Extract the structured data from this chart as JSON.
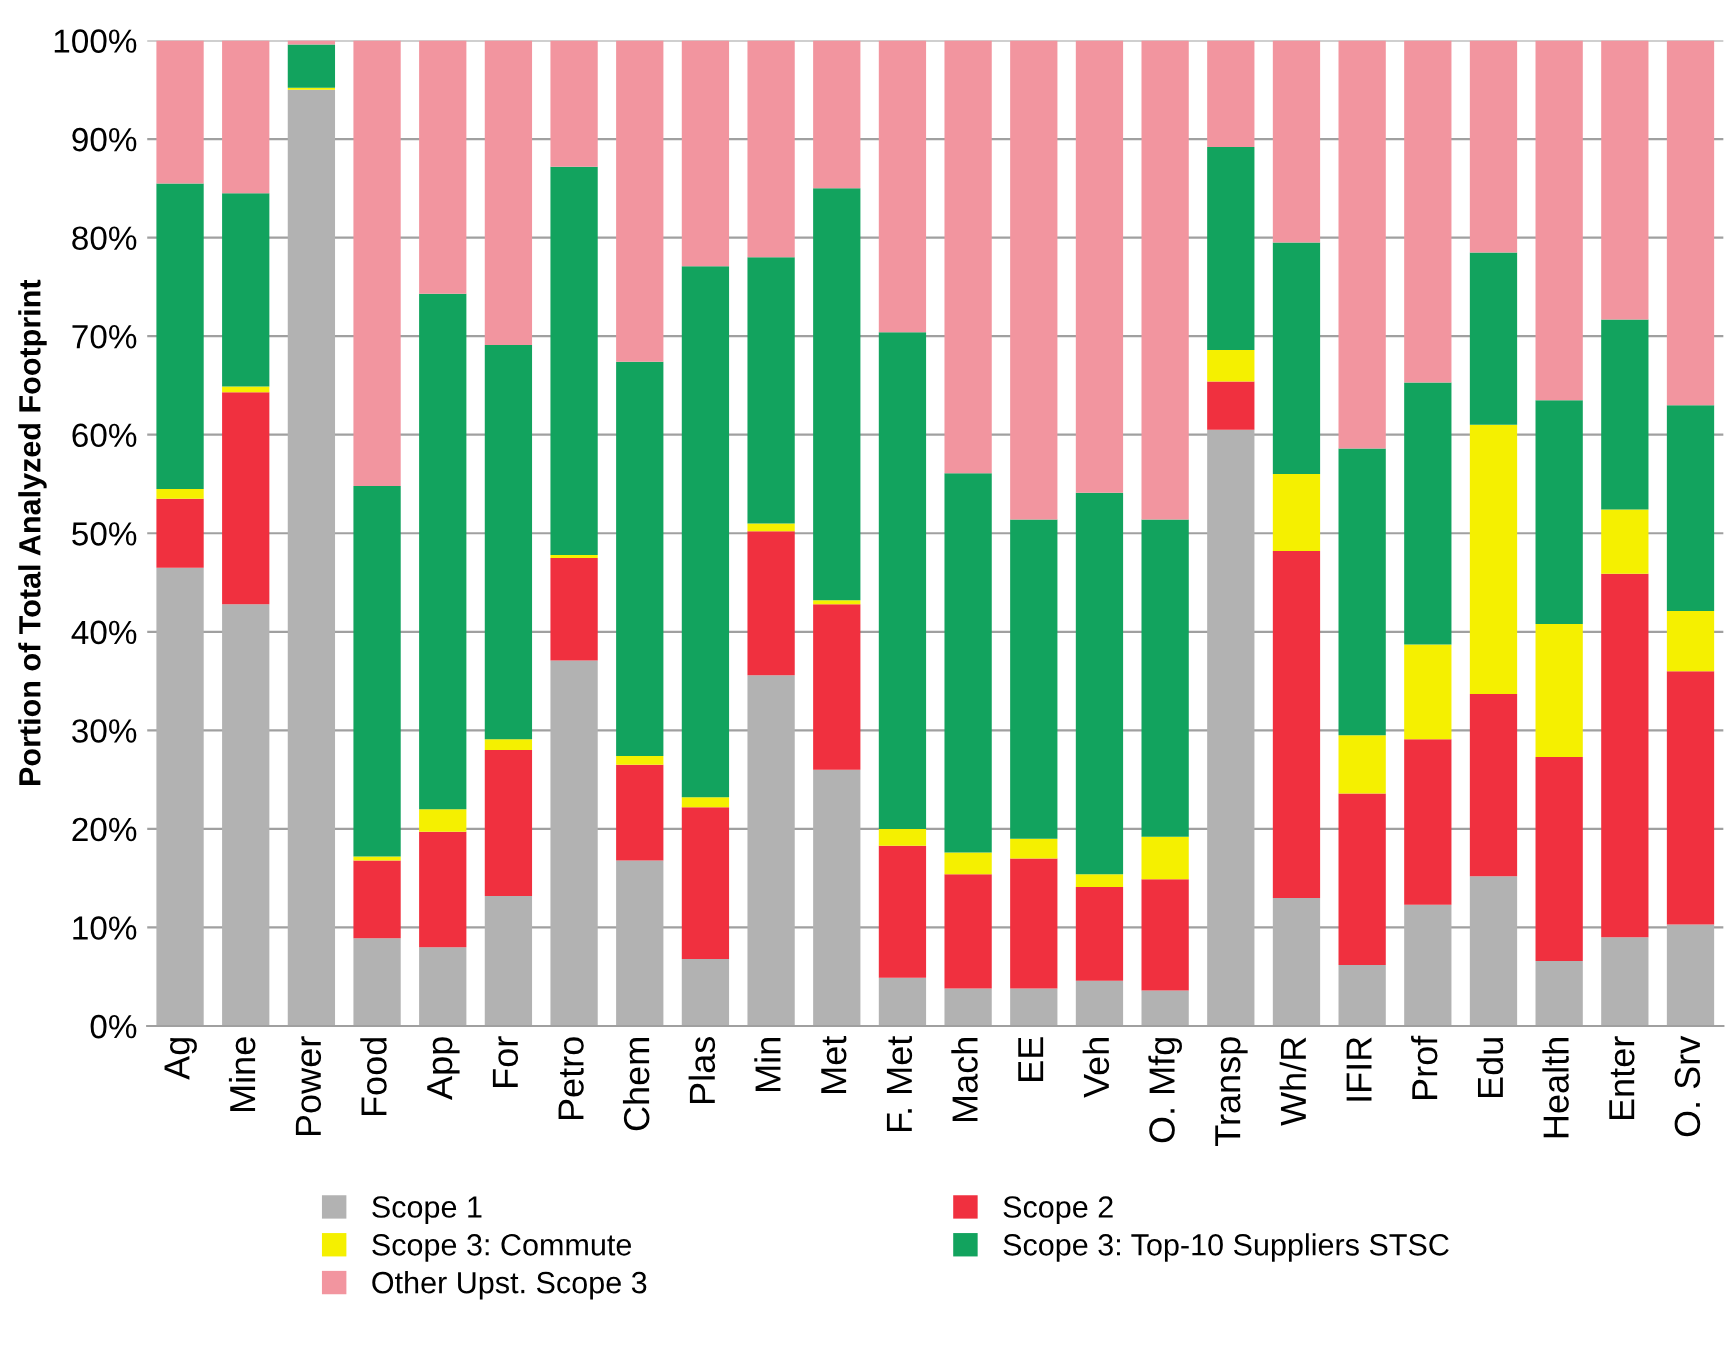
{
  "chart_data": {
    "type": "bar",
    "stacked": true,
    "ylabel": "Portion of Total Analyzed Footprint",
    "categories": [
      "Ag",
      "Mine",
      "Power",
      "Food",
      "App",
      "For",
      "Petro",
      "Chem",
      "Plas",
      "Min",
      "Met",
      "F. Met",
      "Mach",
      "EE",
      "Veh",
      "O. Mfg",
      "Transp",
      "Wh/R",
      "IFIR",
      "Prof",
      "Edu",
      "Health",
      "Enter",
      "O. Srv"
    ],
    "series": [
      {
        "name": "Scope 1",
        "color": "#b2b2b2",
        "values": [
          46.5,
          42.8,
          95.0,
          8.9,
          8.0,
          13.2,
          37.1,
          16.8,
          6.8,
          35.6,
          26.0,
          4.9,
          3.8,
          3.8,
          4.6,
          3.6,
          60.5,
          13.0,
          6.2,
          12.3,
          15.2,
          6.6,
          9.0,
          10.3
        ]
      },
      {
        "name": "Scope 2",
        "color": "#f0303f",
        "values": [
          7.0,
          21.5,
          0.0,
          7.9,
          11.7,
          14.8,
          10.4,
          9.7,
          15.4,
          14.6,
          16.8,
          13.4,
          11.6,
          13.2,
          9.5,
          11.3,
          4.9,
          35.2,
          17.4,
          16.8,
          18.5,
          20.7,
          36.9,
          25.7
        ]
      },
      {
        "name": "Scope 3: Commute",
        "color": "#f5f000",
        "values": [
          1.0,
          0.6,
          0.2,
          0.4,
          2.3,
          1.1,
          0.3,
          0.9,
          1.0,
          0.8,
          0.4,
          1.7,
          2.2,
          2.0,
          1.3,
          4.3,
          3.2,
          7.8,
          5.9,
          9.6,
          27.3,
          13.5,
          6.5,
          6.1
        ]
      },
      {
        "name": "Scope 3: Top-10 Suppliers STSC",
        "color": "#12a35e",
        "values": [
          31.0,
          19.6,
          4.4,
          37.6,
          52.3,
          40.0,
          39.4,
          40.0,
          53.9,
          27.0,
          41.8,
          50.4,
          38.5,
          32.4,
          38.7,
          32.2,
          20.6,
          23.5,
          29.1,
          26.6,
          17.5,
          22.7,
          19.3,
          20.9
        ]
      },
      {
        "name": "Other Upst. Scope 3",
        "color": "#f2959f",
        "values": [
          14.5,
          15.5,
          0.4,
          45.2,
          25.7,
          30.9,
          12.8,
          32.6,
          22.9,
          22.0,
          15.0,
          29.6,
          43.9,
          48.6,
          45.9,
          48.6,
          10.8,
          20.5,
          41.4,
          34.7,
          21.5,
          36.5,
          28.3,
          37.0
        ]
      }
    ],
    "ylim": [
      0,
      100
    ],
    "yticks": [
      {
        "value": 0,
        "label": "0%"
      },
      {
        "value": 10,
        "label": "10%"
      },
      {
        "value": 20,
        "label": "20%"
      },
      {
        "value": 30,
        "label": "30%"
      },
      {
        "value": 40,
        "label": "40%"
      },
      {
        "value": 50,
        "label": "50%"
      },
      {
        "value": 60,
        "label": "60%"
      },
      {
        "value": 70,
        "label": "70%"
      },
      {
        "value": 80,
        "label": "80%"
      },
      {
        "value": 90,
        "label": "90%"
      },
      {
        "value": 100,
        "label": "100%"
      }
    ],
    "grid": "y",
    "legend": "bottom"
  }
}
